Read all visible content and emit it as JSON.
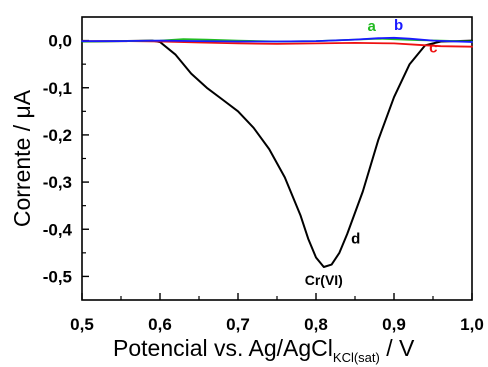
{
  "chart_data": {
    "type": "line",
    "xlabel_main": "Potencial vs. Ag/AgCl",
    "xlabel_sub": "KCl(sat)",
    "xlabel_tail": " / V",
    "ylabel": "Corrente / μA",
    "xlim": [
      0.5,
      1.0
    ],
    "ylim": [
      -0.55,
      0.05
    ],
    "x_ticks": [
      0.5,
      0.6,
      0.7,
      0.8,
      0.9,
      1.0
    ],
    "x_tick_labels": [
      "0,5",
      "0,6",
      "0,7",
      "0,8",
      "0,9",
      "1,0"
    ],
    "y_ticks": [
      0.0,
      -0.1,
      -0.2,
      -0.3,
      -0.4,
      -0.5
    ],
    "y_tick_labels": [
      "0,0",
      "-0,1",
      "-0,2",
      "-0,3",
      "-0,4",
      "-0,5"
    ],
    "grid": false,
    "series": [
      {
        "name": "a",
        "color": "#22bb22",
        "x": [
          0.5,
          0.55,
          0.6,
          0.63,
          0.66,
          0.7,
          0.75,
          0.8,
          0.85,
          0.88,
          0.9,
          0.93,
          0.96,
          1.0
        ],
        "y": [
          -0.002,
          -0.001,
          0.0,
          0.003,
          0.002,
          0.0,
          -0.002,
          -0.001,
          0.002,
          0.004,
          0.003,
          0.001,
          0.0,
          -0.002
        ]
      },
      {
        "name": "b",
        "color": "#1a1aff",
        "x": [
          0.5,
          0.55,
          0.6,
          0.65,
          0.7,
          0.75,
          0.8,
          0.85,
          0.88,
          0.9,
          0.92,
          0.95,
          0.98,
          1.0
        ],
        "y": [
          -0.001,
          -0.001,
          0.0,
          -0.001,
          -0.002,
          -0.002,
          -0.001,
          0.002,
          0.005,
          0.006,
          0.004,
          0.0,
          -0.002,
          -0.003
        ]
      },
      {
        "name": "c",
        "color": "#ee1111",
        "x": [
          0.5,
          0.55,
          0.6,
          0.65,
          0.7,
          0.75,
          0.8,
          0.85,
          0.9,
          0.93,
          0.96,
          1.0
        ],
        "y": [
          -0.001,
          -0.001,
          -0.002,
          -0.004,
          -0.006,
          -0.007,
          -0.006,
          -0.005,
          -0.006,
          -0.009,
          -0.012,
          -0.013
        ]
      },
      {
        "name": "d",
        "color": "#000000",
        "x": [
          0.5,
          0.55,
          0.59,
          0.6,
          0.62,
          0.64,
          0.66,
          0.68,
          0.7,
          0.72,
          0.74,
          0.76,
          0.78,
          0.79,
          0.8,
          0.81,
          0.82,
          0.83,
          0.84,
          0.86,
          0.88,
          0.9,
          0.92,
          0.94,
          0.96,
          0.98,
          1.0
        ],
        "y": [
          -0.002,
          -0.001,
          0.0,
          -0.003,
          -0.03,
          -0.07,
          -0.1,
          -0.125,
          -0.15,
          -0.185,
          -0.23,
          -0.29,
          -0.37,
          -0.42,
          -0.46,
          -0.48,
          -0.475,
          -0.45,
          -0.41,
          -0.32,
          -0.21,
          -0.12,
          -0.05,
          -0.01,
          -0.002,
          -0.001,
          0.0
        ]
      }
    ],
    "annotations": [
      {
        "text": "Cr(VI)",
        "x": 0.81,
        "y": -0.48,
        "anchor": "below"
      }
    ]
  }
}
